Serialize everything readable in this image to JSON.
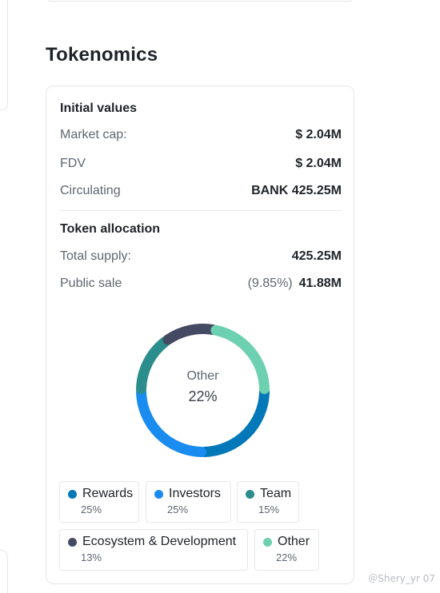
{
  "section": {
    "title": "Tokenomics"
  },
  "initial_values": {
    "title": "Initial values",
    "rows": [
      {
        "label": "Market cap:",
        "value": "$ 2.04M"
      },
      {
        "label": "FDV",
        "value": "$ 2.04M"
      },
      {
        "label": "Circulating",
        "value": "BANK 425.25M"
      }
    ]
  },
  "token_allocation": {
    "title": "Token allocation",
    "total_supply": {
      "label": "Total supply:",
      "value": "425.25M"
    },
    "public_sale": {
      "label": "Public sale",
      "percent": "(9.85%)",
      "value": "41.88M"
    }
  },
  "chart_data": {
    "type": "pie",
    "donut": true,
    "center_label": "Other",
    "center_value": "22%",
    "categories": [
      "Rewards",
      "Investors",
      "Team",
      "Ecosystem & Development",
      "Other"
    ],
    "values": [
      25,
      25,
      15,
      13,
      22
    ],
    "value_labels": [
      "25%",
      "25%",
      "15%",
      "13%",
      "22%"
    ],
    "colors": [
      "#0378b8",
      "#1a8cf0",
      "#2c8d8d",
      "#454a63",
      "#6dd0b0"
    ]
  },
  "watermark": "＠Shery_yr 07"
}
